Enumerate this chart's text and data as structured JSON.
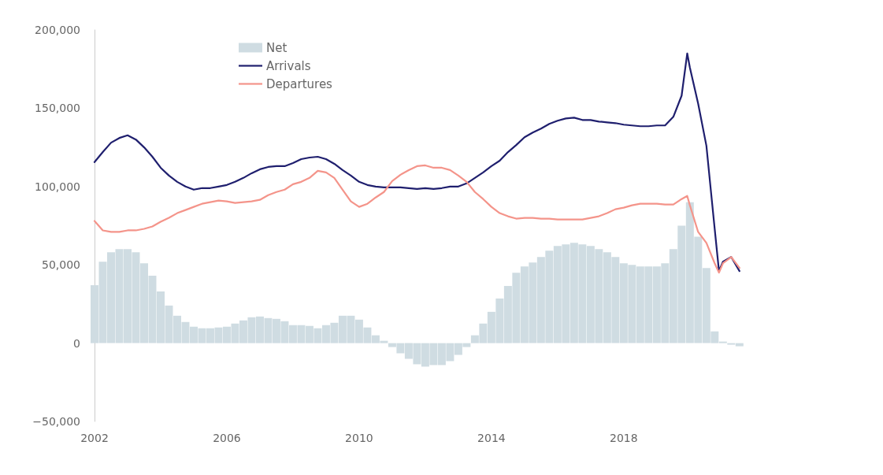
{
  "chart_data": {
    "type": "line",
    "x": [
      2002,
      2002.25,
      2002.5,
      2002.75,
      2003,
      2003.25,
      2003.5,
      2003.75,
      2004,
      2004.25,
      2004.5,
      2004.75,
      2005,
      2005.25,
      2005.5,
      2005.75,
      2006,
      2006.25,
      2006.5,
      2006.75,
      2007,
      2007.25,
      2007.5,
      2007.75,
      2008,
      2008.25,
      2008.5,
      2008.75,
      2009,
      2009.25,
      2009.5,
      2009.75,
      2010,
      2010.25,
      2010.5,
      2010.75,
      2011,
      2011.25,
      2011.5,
      2011.75,
      2012,
      2012.25,
      2012.5,
      2012.75,
      2013,
      2013.25,
      2013.5,
      2013.75,
      2014,
      2014.25,
      2014.5,
      2014.75,
      2015,
      2015.25,
      2015.5,
      2015.75,
      2016,
      2016.25,
      2016.5,
      2016.75,
      2017,
      2017.25,
      2017.5,
      2017.75,
      2018,
      2018.25,
      2018.5,
      2018.75,
      2019,
      2019.25,
      2019.5,
      2019.75,
      2019.92,
      2020,
      2020.25,
      2020.5,
      2020.75,
      2020.88,
      2021,
      2021.25,
      2021.5
    ],
    "series": [
      {
        "name": "Net",
        "type": "bar",
        "color": "#cfdce2",
        "x": [
          2002,
          2002.25,
          2002.5,
          2002.75,
          2003,
          2003.25,
          2003.5,
          2003.75,
          2004,
          2004.25,
          2004.5,
          2004.75,
          2005,
          2005.25,
          2005.5,
          2005.75,
          2006,
          2006.25,
          2006.5,
          2006.75,
          2007,
          2007.25,
          2007.5,
          2007.75,
          2008,
          2008.25,
          2008.5,
          2008.75,
          2009,
          2009.25,
          2009.5,
          2009.75,
          2010,
          2010.25,
          2010.5,
          2010.75,
          2011,
          2011.25,
          2011.5,
          2011.75,
          2012,
          2012.25,
          2012.5,
          2012.75,
          2013,
          2013.25,
          2013.5,
          2013.75,
          2014,
          2014.25,
          2014.5,
          2014.75,
          2015,
          2015.25,
          2015.5,
          2015.75,
          2016,
          2016.25,
          2016.5,
          2016.75,
          2017,
          2017.25,
          2017.5,
          2017.75,
          2018,
          2018.25,
          2018.5,
          2018.75,
          2019,
          2019.25,
          2019.5,
          2019.75,
          2020,
          2020.25,
          2020.5,
          2020.75,
          2021,
          2021.25,
          2021.5
        ],
        "values": [
          37000,
          52000,
          58000,
          60000,
          60000,
          58000,
          51000,
          43000,
          33000,
          24000,
          17500,
          13500,
          10500,
          9500,
          9500,
          10000,
          10500,
          12500,
          14500,
          16500,
          17000,
          16000,
          15500,
          14000,
          11500,
          11500,
          11000,
          9500,
          11500,
          13000,
          17500,
          17500,
          15000,
          10000,
          5000,
          1500,
          -2500,
          -6500,
          -10000,
          -13500,
          -15000,
          -14000,
          -14000,
          -11500,
          -7500,
          -2500,
          5000,
          12500,
          20000,
          28500,
          36500,
          45000,
          49000,
          51500,
          55000,
          59000,
          62000,
          63000,
          64000,
          63000,
          62000,
          60000,
          58000,
          55000,
          51000,
          50000,
          49000,
          49000,
          49000,
          51000,
          60000,
          75000,
          90000,
          68000,
          48000,
          7500,
          1000,
          -1000,
          -2000
        ]
      },
      {
        "name": "Arrivals",
        "color": "#1f1f6e",
        "values": [
          115600,
          122000,
          128000,
          131000,
          132700,
          130000,
          125000,
          119000,
          112000,
          107000,
          103000,
          100000,
          98000,
          99000,
          99000,
          100000,
          101000,
          103000,
          105500,
          108500,
          111000,
          112500,
          113000,
          113000,
          115000,
          117500,
          118500,
          119000,
          117500,
          114500,
          110500,
          107000,
          103000,
          101000,
          100000,
          99500,
          99500,
          99500,
          99000,
          98500,
          99000,
          98500,
          99000,
          100000,
          100000,
          102000,
          105500,
          109000,
          113000,
          116500,
          122000,
          126500,
          131500,
          134500,
          137000,
          140000,
          142000,
          143500,
          144000,
          142500,
          142500,
          141500,
          141000,
          140500,
          139500,
          139000,
          138500,
          138500,
          139000,
          139000,
          144500,
          158000,
          185000,
          176000,
          153000,
          126000,
          73000,
          46000,
          52000,
          55000,
          46000
        ]
      },
      {
        "name": "Departures",
        "color": "#f4948a",
        "values": [
          78000,
          72000,
          71000,
          71000,
          72000,
          72000,
          73000,
          74500,
          77500,
          80000,
          83000,
          85000,
          87000,
          89000,
          90000,
          91000,
          90500,
          89500,
          90000,
          90500,
          91500,
          94500,
          96500,
          98000,
          101500,
          103000,
          105500,
          110000,
          109000,
          105500,
          98000,
          90500,
          87000,
          89000,
          93000,
          96500,
          103500,
          107500,
          110500,
          113000,
          113500,
          112000,
          112000,
          110500,
          107000,
          103000,
          96500,
          92000,
          87000,
          83000,
          81000,
          79500,
          80000,
          80000,
          79500,
          79500,
          79000,
          79000,
          79000,
          79000,
          80000,
          81000,
          83000,
          85500,
          86500,
          88000,
          89000,
          89000,
          89000,
          88500,
          88500,
          92000,
          94000,
          88000,
          71000,
          64000,
          51000,
          45000,
          51000,
          55000,
          48000
        ]
      }
    ],
    "xlim": [
      2002,
      2021.6
    ],
    "xticks": [
      2002,
      2006,
      2010,
      2014,
      2018
    ],
    "ylim": [
      -50000,
      200000
    ],
    "yticks": [
      {
        "value": -50000,
        "label": "−50,000"
      },
      {
        "value": 0,
        "label": "0"
      },
      {
        "value": 50000,
        "label": "50,000"
      },
      {
        "value": 100000,
        "label": "100,000"
      },
      {
        "value": 150000,
        "label": "150,000"
      },
      {
        "value": 200000,
        "label": "200,000"
      }
    ],
    "legend": "top left",
    "grid": false,
    "marker": "none",
    "line_style": "solid"
  }
}
